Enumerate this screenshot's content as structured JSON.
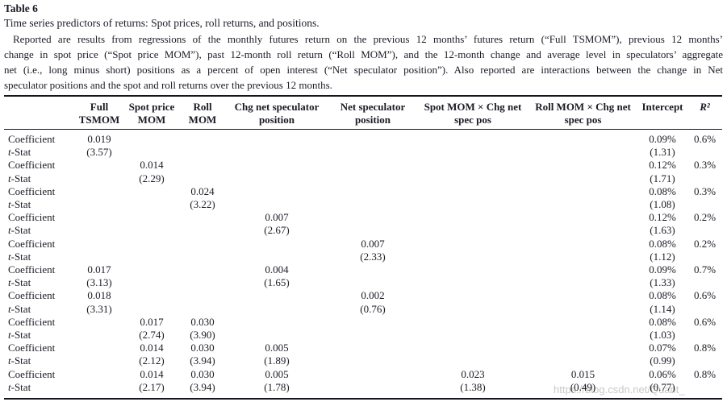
{
  "page": {
    "table_label": "Table 6",
    "caption": "Time series predictors of returns: Spot prices, roll returns, and positions.",
    "description_lines": [
      "Reported are results from regressions of the monthly futures return on the previous 12 months’ futures return (“Full TSMOM”), previous 12 months’",
      "change in spot price (“Spot price MOM”), past 12-month roll return (“Roll MOM”), and the 12-month change and average level in speculators’ aggregate",
      "net (i.e., long minus short) positions as a percent of open interest (“Net speculator position”). Also reported are interactions between the change in Net",
      "speculator positions and the spot and roll returns over the previous 12 months."
    ],
    "watermark": "https://blog.csdn.net/Quant_"
  },
  "chart_data": {
    "type": "table",
    "columns": [
      {
        "id": "row-label",
        "lines": []
      },
      {
        "id": "full-tsmom",
        "lines": [
          "Full",
          "TSMOM"
        ]
      },
      {
        "id": "spot-price-mom",
        "lines": [
          "Spot price",
          "MOM"
        ]
      },
      {
        "id": "roll-mom",
        "lines": [
          "Roll",
          "MOM"
        ]
      },
      {
        "id": "chg-net-speculator-position",
        "lines": [
          "Chg net speculator",
          "position"
        ]
      },
      {
        "id": "net-speculator-position",
        "lines": [
          "Net speculator",
          "position"
        ]
      },
      {
        "id": "spot-mom-x-chg-net-spec-pos",
        "lines": [
          "Spot MOM × Chg net",
          "spec pos"
        ]
      },
      {
        "id": "roll-mom-x-chg-net-spec-pos",
        "lines": [
          "Roll MOM × Chg net",
          "spec pos"
        ]
      },
      {
        "id": "intercept",
        "lines": [
          "Intercept"
        ]
      },
      {
        "id": "r-squared",
        "lines": [
          "R²"
        ]
      }
    ],
    "rows": [
      {
        "label": "Coefficient",
        "cells": [
          "0.019",
          "",
          "",
          "",
          "",
          "",
          "",
          "0.09%",
          "0.6%"
        ]
      },
      {
        "label": "t-Stat",
        "cells": [
          "(3.57)",
          "",
          "",
          "",
          "",
          "",
          "",
          "(1.31)",
          ""
        ]
      },
      {
        "label": "Coefficient",
        "cells": [
          "",
          "0.014",
          "",
          "",
          "",
          "",
          "",
          "0.12%",
          "0.3%"
        ]
      },
      {
        "label": "t-Stat",
        "cells": [
          "",
          "(2.29)",
          "",
          "",
          "",
          "",
          "",
          "(1.71)",
          ""
        ]
      },
      {
        "label": "Coefficient",
        "cells": [
          "",
          "",
          "0.024",
          "",
          "",
          "",
          "",
          "0.08%",
          "0.3%"
        ]
      },
      {
        "label": "t-Stat",
        "cells": [
          "",
          "",
          "(3.22)",
          "",
          "",
          "",
          "",
          "(1.08)",
          ""
        ]
      },
      {
        "label": "Coefficient",
        "cells": [
          "",
          "",
          "",
          "0.007",
          "",
          "",
          "",
          "0.12%",
          "0.2%"
        ]
      },
      {
        "label": "t-Stat",
        "cells": [
          "",
          "",
          "",
          "(2.67)",
          "",
          "",
          "",
          "(1.63)",
          ""
        ]
      },
      {
        "label": "Coefficient",
        "cells": [
          "",
          "",
          "",
          "",
          "0.007",
          "",
          "",
          "0.08%",
          "0.2%"
        ]
      },
      {
        "label": "t-Stat",
        "cells": [
          "",
          "",
          "",
          "",
          "(2.33)",
          "",
          "",
          "(1.12)",
          ""
        ]
      },
      {
        "label": "Coefficient",
        "cells": [
          "0.017",
          "",
          "",
          "0.004",
          "",
          "",
          "",
          "0.09%",
          "0.7%"
        ]
      },
      {
        "label": "t-Stat",
        "cells": [
          "(3.13)",
          "",
          "",
          "(1.65)",
          "",
          "",
          "",
          "(1.33)",
          ""
        ]
      },
      {
        "label": "Coefficient",
        "cells": [
          "0.018",
          "",
          "",
          "",
          "0.002",
          "",
          "",
          "0.08%",
          "0.6%"
        ]
      },
      {
        "label": "t-Stat",
        "cells": [
          "(3.31)",
          "",
          "",
          "",
          "(0.76)",
          "",
          "",
          "(1.14)",
          ""
        ]
      },
      {
        "label": "Coefficient",
        "cells": [
          "",
          "0.017",
          "0.030",
          "",
          "",
          "",
          "",
          "0.08%",
          "0.6%"
        ]
      },
      {
        "label": "t-Stat",
        "cells": [
          "",
          "(2.74)",
          "(3.90)",
          "",
          "",
          "",
          "",
          "(1.03)",
          ""
        ]
      },
      {
        "label": "Coefficient",
        "cells": [
          "",
          "0.014",
          "0.030",
          "0.005",
          "",
          "",
          "",
          "0.07%",
          "0.8%"
        ]
      },
      {
        "label": "t-Stat",
        "cells": [
          "",
          "(2.12)",
          "(3.94)",
          "(1.89)",
          "",
          "",
          "",
          "(0.99)",
          ""
        ]
      },
      {
        "label": "Coefficient",
        "cells": [
          "",
          "0.014",
          "0.030",
          "0.005",
          "",
          "0.023",
          "0.015",
          "0.06%",
          "0.8%"
        ]
      },
      {
        "label": "t-Stat",
        "cells": [
          "",
          "(2.17)",
          "(3.94)",
          "(1.78)",
          "",
          "(1.38)",
          "(0.49)",
          "(0.77)",
          ""
        ]
      }
    ]
  }
}
